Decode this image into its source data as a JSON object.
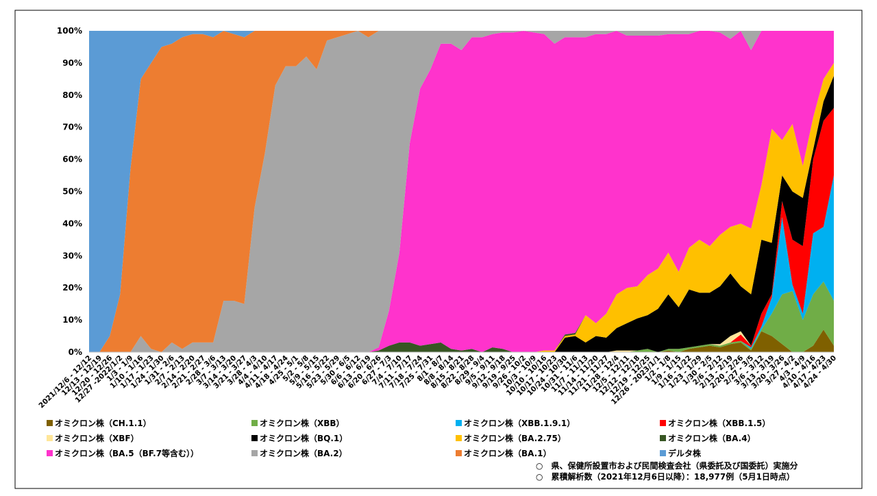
{
  "chart_data": {
    "type": "area",
    "stacked": true,
    "categories": [
      "2021/12/6 - 12/12",
      "12/13 - 12/19",
      "12/20 - 12/26",
      "12/27 -2022/1/2",
      "1/3 - 1/9",
      "1/10 - 1/16",
      "1/17 - 1/23",
      "1/24 - 1/30",
      "1/31 - 2/6",
      "2/7 - 2/13",
      "2/14 - 2/20",
      "2/21 - 2/27",
      "2/28 - 3/6",
      "3/7 - 3/13",
      "3/14 - 3/20",
      "3/21 - 3/27",
      "3/28 - 4/3",
      "4/4 - 4/10",
      "4/11 - 4/17",
      "4/18 - 4/24",
      "4/25 - 5/1",
      "5/2 - 5/8",
      "5/9 - 5/15",
      "5/16 - 5/22",
      "5/23 - 5/29",
      "5/30 - 6/5",
      "6/6 - 6/12",
      "6/13 - 6/19",
      "6/20 - 6/26",
      "6/27 - 7/3",
      "7/4 - 7/10",
      "7/11 - 7/17",
      "7/18 - 7/24",
      "7/25 - 7/31",
      "8/1 - 8/7",
      "8/8 - 8/14",
      "8/15 - 8/21",
      "8/22 - 8/28",
      "8/29 - 9/4",
      "9/5 - 9/11",
      "9/12 - 9/18",
      "9/19 - 9/25",
      "9/26 - 10/2",
      "10/3 - 10/9",
      "10/10 - 10/16",
      "10/17 - 10/23",
      "10/24 - 10/30",
      "10/31 - 11/6",
      "11/7 - 11/13",
      "11/14 - 11/20",
      "11/21 - 11/27",
      "11/28 - 12/4",
      "12/5 - 12/11",
      "12/12 - 12/18",
      "12/19 - 12/25",
      "12/26 - 2023/1/1",
      "1/2 - 1/8",
      "1/9 - 1/15",
      "1/16 - 1/22",
      "1/23 - 1/29",
      "1/30 - 2/5",
      "2/6 - 2/12",
      "2/13 - 2/19",
      "2/20 - 2/26",
      "2/27 - 3/5",
      "3/6 - 3/12",
      "3/13 - 3/19",
      "3/20 - 3/26",
      "3/27 - 4/2",
      "4/3 - 4/9",
      "4/10 - 4/16",
      "4/17 - 4/23",
      "4/24 - 4/30"
    ],
    "series": [
      {
        "name": "オミクロン株（CH.1.1）",
        "color": "#7f6000",
        "values": [
          0,
          0,
          0,
          0,
          0,
          0,
          0,
          0,
          0,
          0,
          0,
          0,
          0,
          0,
          0,
          0,
          0,
          0,
          0,
          0,
          0,
          0,
          0,
          0,
          0,
          0,
          0,
          0,
          0,
          0,
          0,
          0,
          0,
          0,
          0,
          0,
          0,
          0,
          0,
          0,
          0,
          0,
          0,
          0,
          0,
          0,
          0,
          0,
          0,
          0,
          0,
          0,
          0,
          0,
          0,
          0,
          0.5,
          0,
          1,
          1.5,
          2,
          1.5,
          2.5,
          3,
          0.5,
          6.5,
          5,
          2.5,
          0,
          0,
          2,
          7,
          2
        ]
      },
      {
        "name": "オミクロン株（XBB）",
        "color": "#70ad47",
        "values": [
          0,
          0,
          0,
          0,
          0,
          0,
          0,
          0,
          0,
          0,
          0,
          0,
          0,
          0,
          0,
          0,
          0,
          0,
          0,
          0,
          0,
          0,
          0,
          0,
          0,
          0,
          0,
          0,
          0,
          0,
          0,
          0,
          0,
          0,
          0,
          0,
          0,
          0,
          0,
          0,
          0,
          0,
          0,
          0,
          0,
          0,
          0,
          0,
          0,
          0,
          0,
          0,
          0,
          0.5,
          1,
          0,
          0.5,
          1,
          0.5,
          0.5,
          0.5,
          0.5,
          0.5,
          0.5,
          0.5,
          0.5,
          7,
          15.5,
          19,
          10,
          16,
          15,
          14
        ]
      },
      {
        "name": "オミクロン株（XBB.1.9.1）",
        "color": "#00b0f0",
        "values": [
          0,
          0,
          0,
          0,
          0,
          0,
          0,
          0,
          0,
          0,
          0,
          0,
          0,
          0,
          0,
          0,
          0,
          0,
          0,
          0,
          0,
          0,
          0,
          0,
          0,
          0,
          0,
          0,
          0,
          0,
          0,
          0,
          0,
          0,
          0,
          0,
          0,
          0,
          0,
          0,
          0,
          0,
          0,
          0,
          0,
          0,
          0,
          0,
          0,
          0,
          0,
          0,
          0,
          0,
          0,
          0,
          0,
          0,
          0,
          0,
          0,
          0,
          0,
          0,
          0.5,
          1,
          5,
          24,
          2,
          2,
          19,
          17,
          39
        ]
      },
      {
        "name": "オミクロン株（XBB.1.5）",
        "color": "#ff0000",
        "values": [
          0,
          0,
          0,
          0,
          0,
          0,
          0,
          0,
          0,
          0,
          0,
          0,
          0,
          0,
          0,
          0,
          0,
          0,
          0,
          0,
          0,
          0,
          0,
          0,
          0,
          0,
          0,
          0,
          0,
          0,
          0,
          0,
          0,
          0,
          0,
          0,
          0,
          0,
          0,
          0,
          0,
          0,
          0,
          0,
          0,
          0,
          0,
          0,
          0,
          0,
          0,
          0,
          0,
          0,
          0,
          0,
          0,
          0,
          0,
          0,
          0,
          0,
          0,
          2,
          0.5,
          4,
          1,
          5,
          14,
          21,
          23,
          33,
          21
        ]
      },
      {
        "name": "オミクロン株（XBF）",
        "color": "#ffe699",
        "values": [
          0,
          0,
          0,
          0,
          0,
          0,
          0,
          0,
          0,
          0,
          0,
          0,
          0,
          0,
          0,
          0,
          0,
          0,
          0,
          0,
          0,
          0,
          0,
          0,
          0,
          0,
          0,
          0,
          0,
          0,
          0,
          0,
          0,
          0,
          0,
          0,
          0,
          0,
          0,
          0,
          0,
          0,
          0,
          0,
          0,
          0,
          0,
          0,
          0,
          0,
          0,
          0.5,
          0.5,
          0,
          0,
          0,
          0,
          0,
          0,
          0,
          0,
          0.5,
          2,
          1,
          0,
          0,
          0,
          0,
          0,
          0,
          0,
          0,
          0
        ]
      },
      {
        "name": "オミクロン株（BQ.1）",
        "color": "#000000",
        "values": [
          0,
          0,
          0,
          0,
          0,
          0,
          0,
          0,
          0,
          0,
          0,
          0,
          0,
          0,
          0,
          0,
          0,
          0,
          0,
          0,
          0,
          0,
          0,
          0,
          0,
          0,
          0,
          0,
          0,
          0,
          0,
          0,
          0,
          0,
          0,
          0,
          0,
          0,
          0,
          0,
          0,
          0,
          0,
          0,
          0,
          0,
          4.5,
          5,
          3,
          5,
          4.5,
          7,
          8.5,
          10,
          10.5,
          13.5,
          17,
          13,
          18,
          16.5,
          16,
          18,
          19.5,
          14,
          16,
          23,
          16,
          8,
          15,
          15,
          3,
          6,
          10
        ]
      },
      {
        "name": "オミクロン株（BA.2.75）",
        "color": "#ffc000",
        "values": [
          0,
          0,
          0,
          0,
          0,
          0,
          0,
          0,
          0,
          0,
          0,
          0,
          0,
          0,
          0,
          0,
          0,
          0,
          0,
          0,
          0,
          0,
          0,
          0,
          0,
          0,
          0,
          0,
          0,
          0,
          0,
          0,
          0,
          0,
          0,
          0,
          0,
          0,
          0,
          0,
          0,
          0,
          0,
          0,
          0.5,
          0.5,
          0.5,
          0.5,
          8.5,
          4,
          7.5,
          10.5,
          11,
          10,
          12.5,
          12.5,
          13,
          11,
          13,
          16.5,
          14.5,
          16,
          14.5,
          19.5,
          20.5,
          17,
          35.5,
          11,
          21,
          10,
          10,
          7,
          4
        ]
      },
      {
        "name": "オミクロン株（BA.4）",
        "color": "#375623",
        "values": [
          0,
          0,
          0,
          0,
          0,
          0,
          0,
          0,
          0,
          0,
          0,
          0,
          0,
          0,
          0,
          0,
          0,
          0,
          0,
          0,
          0,
          0,
          0,
          0,
          0,
          0,
          0,
          0,
          0.5,
          2,
          3,
          3,
          2,
          2.5,
          3,
          1,
          0.5,
          1,
          0,
          1.5,
          1,
          0,
          0,
          0,
          0,
          0,
          0.5,
          0.5,
          0,
          0,
          0,
          0,
          0,
          0,
          0,
          0,
          0,
          0,
          0,
          0,
          0,
          0,
          0,
          0,
          0,
          0,
          0,
          0,
          0,
          0,
          0,
          0,
          0
        ]
      },
      {
        "name": "オミクロン株（BA.5（BF.7等含む））",
        "color": "#ff33cc",
        "values": [
          0,
          0,
          0,
          0,
          0,
          0,
          0,
          0,
          0,
          0,
          0,
          0,
          0,
          0,
          0,
          0,
          0,
          0,
          0,
          0,
          0,
          0,
          0,
          0,
          0,
          0,
          0,
          0,
          1,
          11,
          28,
          62,
          80,
          85.5,
          93,
          95,
          93.5,
          97,
          98,
          97.5,
          98.5,
          99.5,
          100,
          99.5,
          98.5,
          95.5,
          92.5,
          92,
          86.5,
          90,
          87,
          82,
          78.5,
          78,
          74.5,
          72.5,
          68,
          74,
          66.5,
          65,
          67,
          63,
          58.5,
          60,
          55.5,
          48,
          30.5,
          34,
          29,
          42,
          27,
          15,
          10
        ]
      },
      {
        "name": "オミクロン株（BA.2）",
        "color": "#a6a6a6",
        "values": [
          0,
          0,
          0,
          0,
          0,
          5,
          1,
          0,
          3,
          1,
          3,
          3,
          3,
          16,
          16,
          15,
          45,
          62,
          83,
          89,
          89,
          92,
          88,
          97,
          98,
          99,
          100,
          98,
          98.5,
          87,
          69,
          35,
          18,
          12,
          4,
          4,
          6,
          2,
          2,
          1,
          0.5,
          0.5,
          0,
          0.5,
          1,
          4,
          2,
          2,
          2,
          1,
          1,
          0,
          1.5,
          1.5,
          1.5,
          1.5,
          1,
          1,
          1,
          0,
          0,
          0.5,
          2.5,
          0,
          6,
          0,
          0,
          0,
          0,
          0,
          0,
          0,
          0
        ]
      },
      {
        "name": "オミクロン株（BA.1）",
        "color": "#ed7d31",
        "values": [
          0,
          0,
          5,
          18,
          57,
          80,
          89,
          95,
          93,
          97,
          96,
          96,
          95,
          84,
          83,
          83,
          55,
          38,
          17,
          11,
          11,
          8,
          12,
          3,
          2,
          1,
          0,
          2,
          0,
          0,
          0,
          0,
          0,
          0,
          0,
          0,
          0,
          0,
          0,
          0,
          0,
          0,
          0,
          0,
          0,
          0,
          0,
          0,
          0,
          0,
          0,
          0,
          0,
          0,
          0,
          0,
          0,
          0,
          0,
          0,
          0,
          0,
          0,
          0,
          0,
          0,
          0,
          0,
          0,
          0,
          0,
          0,
          0
        ]
      },
      {
        "name": "デルタ株",
        "color": "#5b9bd5",
        "values": [
          100,
          100,
          95,
          82,
          43,
          15,
          10,
          5,
          4,
          2,
          1,
          1,
          2,
          0,
          1,
          2,
          0,
          0,
          0,
          0,
          0,
          0,
          0,
          0,
          0,
          0,
          0,
          0,
          0,
          0,
          0,
          0,
          0,
          0,
          0,
          0,
          0,
          0,
          0,
          0,
          0,
          0,
          0,
          0,
          0,
          0,
          0,
          0,
          0,
          0,
          0,
          0,
          0,
          0,
          0,
          0,
          0,
          0,
          0,
          0,
          0,
          0,
          0,
          0,
          0,
          0,
          0,
          0,
          0,
          0,
          0,
          0,
          0
        ]
      }
    ],
    "ylim": [
      0,
      100
    ],
    "yticks": [
      {
        "value": 0,
        "label": "0%"
      },
      {
        "value": 10,
        "label": "10%"
      },
      {
        "value": 20,
        "label": "20%"
      },
      {
        "value": 30,
        "label": "30%"
      },
      {
        "value": 40,
        "label": "40%"
      },
      {
        "value": 50,
        "label": "50%"
      },
      {
        "value": 60,
        "label": "60%"
      },
      {
        "value": 70,
        "label": "70%"
      },
      {
        "value": 80,
        "label": "80%"
      },
      {
        "value": 90,
        "label": "90%"
      },
      {
        "value": 100,
        "label": "100%"
      }
    ],
    "grid": false,
    "notes": [
      "○　県、保健所設置市および民間検査会社（県委託及び国委託）実施分",
      "○　累積解析数（2021年12月6日以降）：18,977例（5月1日時点）"
    ]
  }
}
